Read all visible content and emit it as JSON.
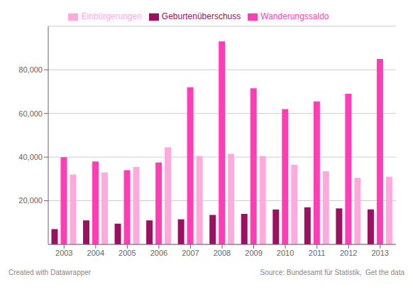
{
  "chart_data": {
    "type": "bar",
    "categories": [
      "2003",
      "2004",
      "2005",
      "2006",
      "2007",
      "2008",
      "2009",
      "2010",
      "2011",
      "2012",
      "2013"
    ],
    "series": [
      {
        "name": "Geburtenüberschuss",
        "color": "#9B1060",
        "values": [
          7000,
          11000,
          9500,
          11000,
          11500,
          13500,
          14000,
          16000,
          17000,
          16500,
          16000
        ]
      },
      {
        "name": "Wanderungssaldo",
        "color": "#FF3EB5",
        "values": [
          40000,
          38000,
          34000,
          37500,
          72000,
          93000,
          71500,
          62000,
          65500,
          69000,
          85000
        ]
      },
      {
        "name": "Einbürgerungen",
        "color": "#FFAADD",
        "values": [
          32000,
          33000,
          35500,
          44500,
          40500,
          41500,
          40500,
          36500,
          33500,
          30500,
          31000
        ]
      }
    ],
    "ylim": [
      0,
      100000
    ],
    "yticks": [
      {
        "value": 20000,
        "label": "20,000"
      },
      {
        "value": 40000,
        "label": "40,000"
      },
      {
        "value": 60000,
        "label": "60,000"
      },
      {
        "value": 80000,
        "label": "80,000"
      }
    ],
    "grid": true,
    "legend": "top",
    "annotations": [
      "Created with Datawrapper",
      "Source: Bundesamt für Statistik,  Get the data"
    ]
  }
}
